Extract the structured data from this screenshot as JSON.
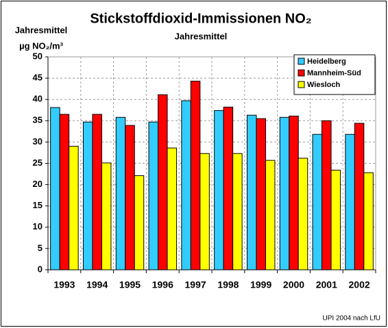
{
  "chart_data": {
    "type": "bar",
    "title": "Stickstoffdioxid-Immissionen NO₂",
    "subtitle": "Jahresmittel",
    "y_label": [
      "Jahresmittel",
      "µg NO₂/m³"
    ],
    "source": "UPI 2004 nach LfU",
    "categories": [
      "1993",
      "1994",
      "1995",
      "1996",
      "1997",
      "1998",
      "1999",
      "2000",
      "2001",
      "2002"
    ],
    "series": [
      {
        "name": "Heidelberg",
        "color": "#33ccff",
        "values": [
          38.1,
          34.7,
          35.8,
          34.7,
          39.7,
          37.4,
          36.3,
          35.8,
          31.8,
          31.8
        ]
      },
      {
        "name": "Mannheim-Süd",
        "color": "#ff0000",
        "values": [
          36.5,
          36.5,
          33.9,
          41.1,
          44.3,
          38.2,
          35.5,
          36.1,
          35.0,
          34.4
        ]
      },
      {
        "name": "Wiesloch",
        "color": "#ffff00",
        "values": [
          29.0,
          25.1,
          22.1,
          28.6,
          27.3,
          27.3,
          25.7,
          26.2,
          23.4,
          22.8
        ]
      }
    ],
    "ylim": [
      0,
      50
    ],
    "yticks": [
      0,
      5,
      10,
      15,
      20,
      25,
      30,
      35,
      40,
      45,
      50
    ],
    "grid": true,
    "legend": "top-right"
  }
}
